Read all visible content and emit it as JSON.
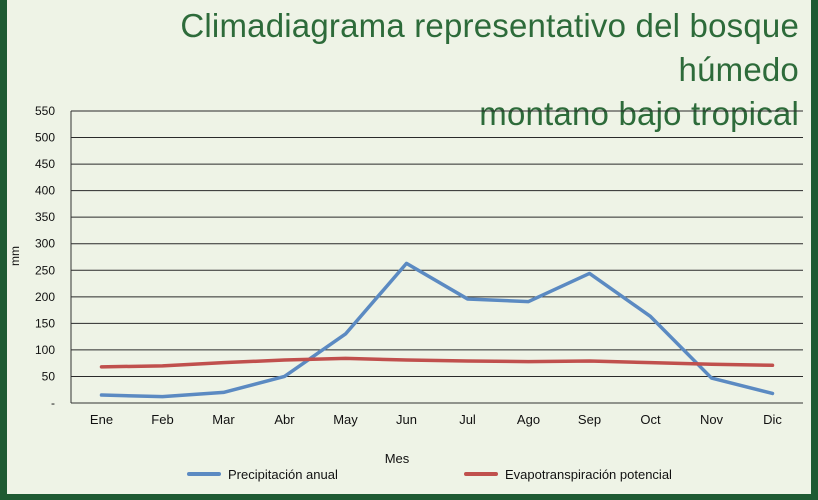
{
  "chart_data": {
    "type": "line",
    "title_line1": "Climadiagrama representativo del bosque húmedo",
    "title_line2": "montano bajo tropical",
    "xlabel": "Mes",
    "ylabel": "mm",
    "categories": [
      "Ene",
      "Feb",
      "Mar",
      "Abr",
      "May",
      "Jun",
      "Jul",
      "Ago",
      "Sep",
      "Oct",
      "Nov",
      "Dic"
    ],
    "ylim": [
      0,
      550
    ],
    "yticks": [
      0,
      50,
      100,
      150,
      200,
      250,
      300,
      350,
      400,
      450,
      500,
      550
    ],
    "ytick_labels": [
      "-",
      "50",
      "100",
      "150",
      "200",
      "250",
      "300",
      "350",
      "400",
      "450",
      "500",
      "550"
    ],
    "grid": true,
    "legend_position": "bottom",
    "series": [
      {
        "name": "Precipitación anual",
        "color": "#5b8ac2",
        "values": [
          15,
          12,
          20,
          50,
          130,
          263,
          196,
          191,
          244,
          163,
          47,
          18
        ]
      },
      {
        "name": "Evapotranspiración potencial",
        "color": "#c0504d",
        "values": [
          68,
          70,
          76,
          81,
          84,
          81,
          79,
          78,
          79,
          76,
          73,
          71
        ]
      }
    ]
  }
}
